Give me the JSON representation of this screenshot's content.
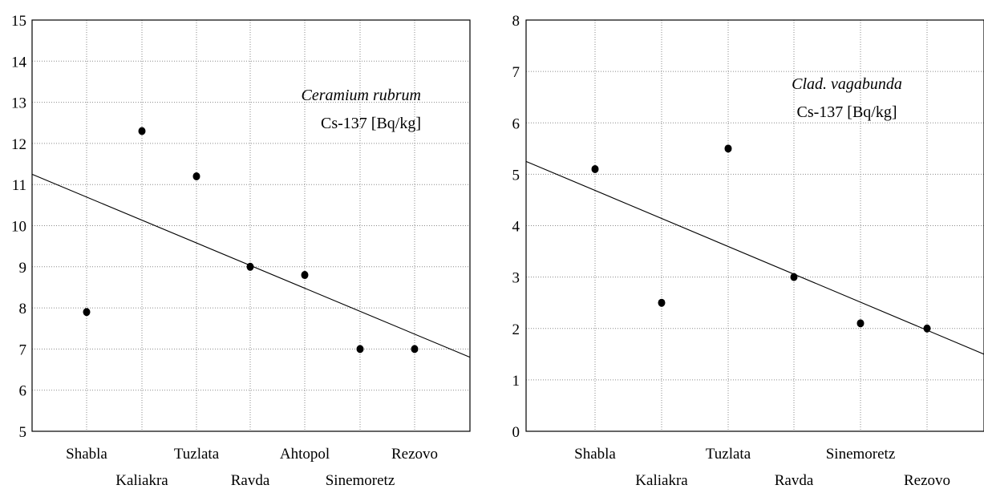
{
  "chart_data": [
    {
      "type": "scatter",
      "title": "",
      "xlabel": "",
      "ylabel": "",
      "categories": [
        "Shabla",
        "Kaliakra",
        "Tuzlata",
        "Ravda",
        "Ahtopol",
        "Sinemoretz",
        "Rezovo"
      ],
      "values": [
        7.9,
        12.3,
        11.2,
        9.0,
        8.8,
        7.0,
        7.0
      ],
      "ylim": [
        5,
        15
      ],
      "yticks": [
        "5",
        "6",
        "7",
        "8",
        "9",
        "10",
        "11",
        "12",
        "13",
        "14",
        "15"
      ],
      "trendline": {
        "start": 11.25,
        "end": 6.8
      },
      "annotation": {
        "species": "Ceramium rubrum",
        "measure": "Cs-137 [Bq/kg]"
      },
      "grid": true
    },
    {
      "type": "scatter",
      "title": "",
      "xlabel": "",
      "ylabel": "",
      "categories": [
        "Shabla",
        "Kaliakra",
        "Tuzlata",
        "Ravda",
        "Sinemoretz",
        "Rezovo"
      ],
      "values": [
        5.1,
        2.5,
        5.5,
        3.0,
        2.1,
        2.0
      ],
      "ylim": [
        0,
        8
      ],
      "yticks": [
        "0",
        "1",
        "2",
        "3",
        "4",
        "5",
        "6",
        "7",
        "8"
      ],
      "trendline": {
        "start": 5.25,
        "end": 1.5
      },
      "annotation": {
        "species": "Clad. vagabunda",
        "measure": "Cs-137 [Bq/kg]"
      },
      "grid": true
    }
  ]
}
